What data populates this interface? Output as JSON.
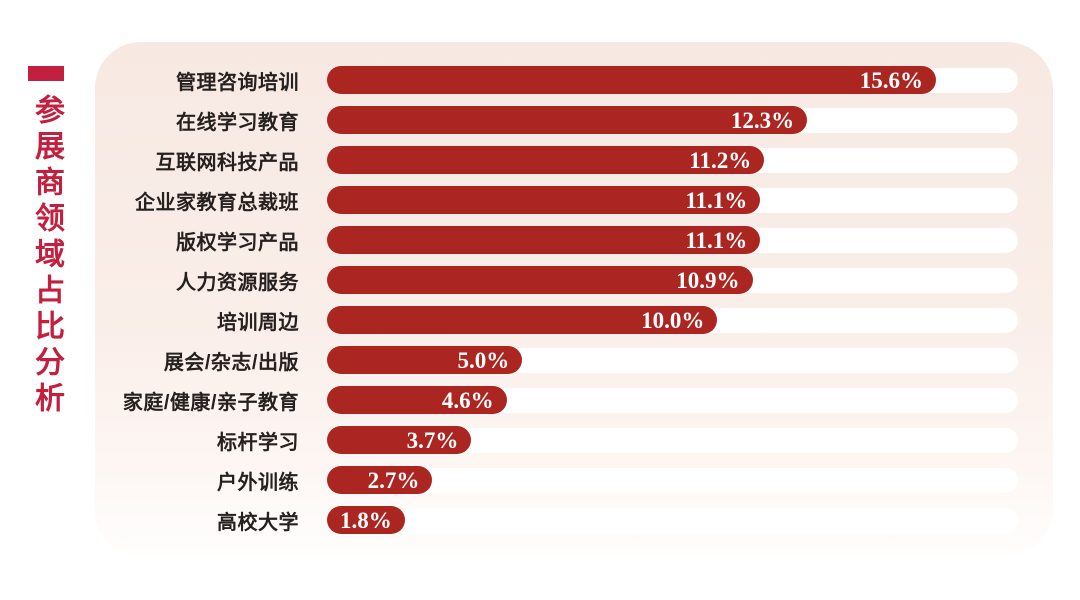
{
  "title": {
    "text": "参展商领域占比分析"
  },
  "colors": {
    "bar_red": "#ac2621",
    "title_red": "#c2203e",
    "panel_top": "#f7e9e2",
    "panel_bottom": "#fffefd",
    "track_white": "#ffffff",
    "label_text": "#26211f"
  },
  "chart_data": {
    "type": "bar",
    "orientation": "horizontal",
    "title": "参展商领域占比分析",
    "categories": [
      "管理咨询培训",
      "在线学习教育",
      "互联网科技产品",
      "企业家教育总裁班",
      "版权学习产品",
      "人力资源服务",
      "培训周边",
      "展会/杂志/出版",
      "家庭/健康/亲子教育",
      "标杆学习",
      "户外训练",
      "高校大学"
    ],
    "values": [
      15.6,
      12.3,
      11.2,
      11.1,
      11.1,
      10.9,
      10.0,
      5.0,
      4.6,
      3.7,
      2.7,
      1.8
    ],
    "value_labels": [
      "15.6%",
      "12.3%",
      "11.2%",
      "11.1%",
      "11.1%",
      "10.9%",
      "10.0%",
      "5.0%",
      "4.6%",
      "3.7%",
      "2.7%",
      "1.8%"
    ],
    "value_suffix": "%",
    "axis_max": 17.7,
    "grid": false,
    "legend": false,
    "value_label_position": "inside-end"
  }
}
